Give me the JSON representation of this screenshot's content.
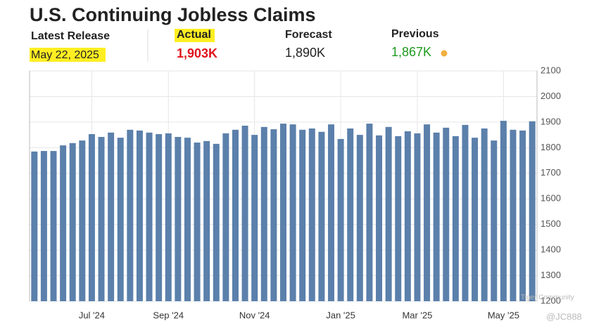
{
  "header": {
    "latest_release_label": "Latest Release",
    "release_date": "May 22, 2025",
    "actual_label": "Actual",
    "actual": "1,903K",
    "forecast_label": "Forecast",
    "forecast": "1,890K",
    "previous_label": "Previous",
    "previous": "1,867K"
  },
  "watermark": {
    "brand": "Tiger Community",
    "handle": "@JC888"
  },
  "chart_data": {
    "type": "bar",
    "title": "U.S. Continuing Jobless Claims",
    "categories": [
      null,
      null,
      null,
      null,
      null,
      null,
      "Jul '24",
      null,
      null,
      null,
      null,
      null,
      null,
      null,
      "Sep '24",
      null,
      null,
      null,
      null,
      null,
      null,
      null,
      null,
      "Nov '24",
      null,
      null,
      null,
      null,
      null,
      null,
      null,
      null,
      "Jan '25",
      null,
      null,
      null,
      null,
      null,
      null,
      null,
      "Mar '25",
      null,
      null,
      null,
      null,
      null,
      null,
      null,
      null,
      "May '25",
      null,
      null,
      null
    ],
    "values": [
      1785,
      1787,
      1787,
      1809,
      1818,
      1828,
      1853,
      1842,
      1859,
      1839,
      1870,
      1867,
      1859,
      1853,
      1856,
      1842,
      1839,
      1820,
      1826,
      1815,
      1856,
      1870,
      1886,
      1850,
      1881,
      1872,
      1894,
      1891,
      1870,
      1875,
      1862,
      1891,
      1834,
      1875,
      1850,
      1894,
      1848,
      1881,
      1845,
      1864,
      1856,
      1891,
      1859,
      1878,
      1845,
      1889,
      1839,
      1875,
      1828,
      1905,
      1870,
      1867,
      1903
    ],
    "color": "#5b80ab",
    "ylim": [
      1200,
      2100
    ],
    "yticks": [
      1200,
      1300,
      1400,
      1500,
      1600,
      1700,
      1800,
      1900,
      2000,
      2100
    ],
    "grid": true
  }
}
